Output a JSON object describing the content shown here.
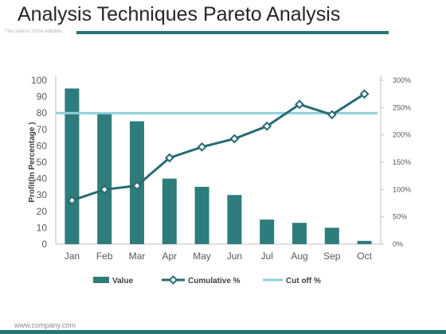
{
  "slide": {
    "title": "Analysis Techniques Pareto Analysis",
    "subtitle": "This slide is 100% editable.",
    "footer": "www.company.com"
  },
  "colors": {
    "bar": "#2e7d7d",
    "cumulative": "#276b73",
    "cutoff": "#8ecfdb",
    "axis_text": "#595959",
    "rule": "#2a7474"
  },
  "chart_data": {
    "type": "bar",
    "categories": [
      "Jan",
      "Feb",
      "Mar",
      "Apr",
      "May",
      "Jun",
      "Jul",
      "Aug",
      "Sep",
      "Oct"
    ],
    "series": [
      {
        "name": "Value",
        "type": "bar",
        "axis": "left",
        "values": [
          95,
          80,
          75,
          40,
          35,
          30,
          15,
          13,
          10,
          2
        ]
      },
      {
        "name": "Cumulative %",
        "type": "line",
        "axis": "right",
        "values": [
          80,
          100,
          107,
          158,
          178,
          193,
          216,
          256,
          237,
          275
        ]
      },
      {
        "name": "Cut off %",
        "type": "line",
        "axis": "left",
        "constant": 80
      }
    ],
    "ylabel": "Profit(In Percentage )",
    "ylim": [
      0,
      100
    ],
    "yticks": [
      "0",
      "10",
      "20",
      "30",
      "40",
      "50",
      "60",
      "70",
      "80",
      "90",
      "100"
    ],
    "y2lim": [
      0,
      300
    ],
    "y2ticks": [
      "0%",
      "50%",
      "100%",
      "150%",
      "200%",
      "250%",
      "300%"
    ],
    "legend": [
      "Value",
      "Cumulative %",
      "Cut off %"
    ],
    "legend_position": "bottom"
  }
}
